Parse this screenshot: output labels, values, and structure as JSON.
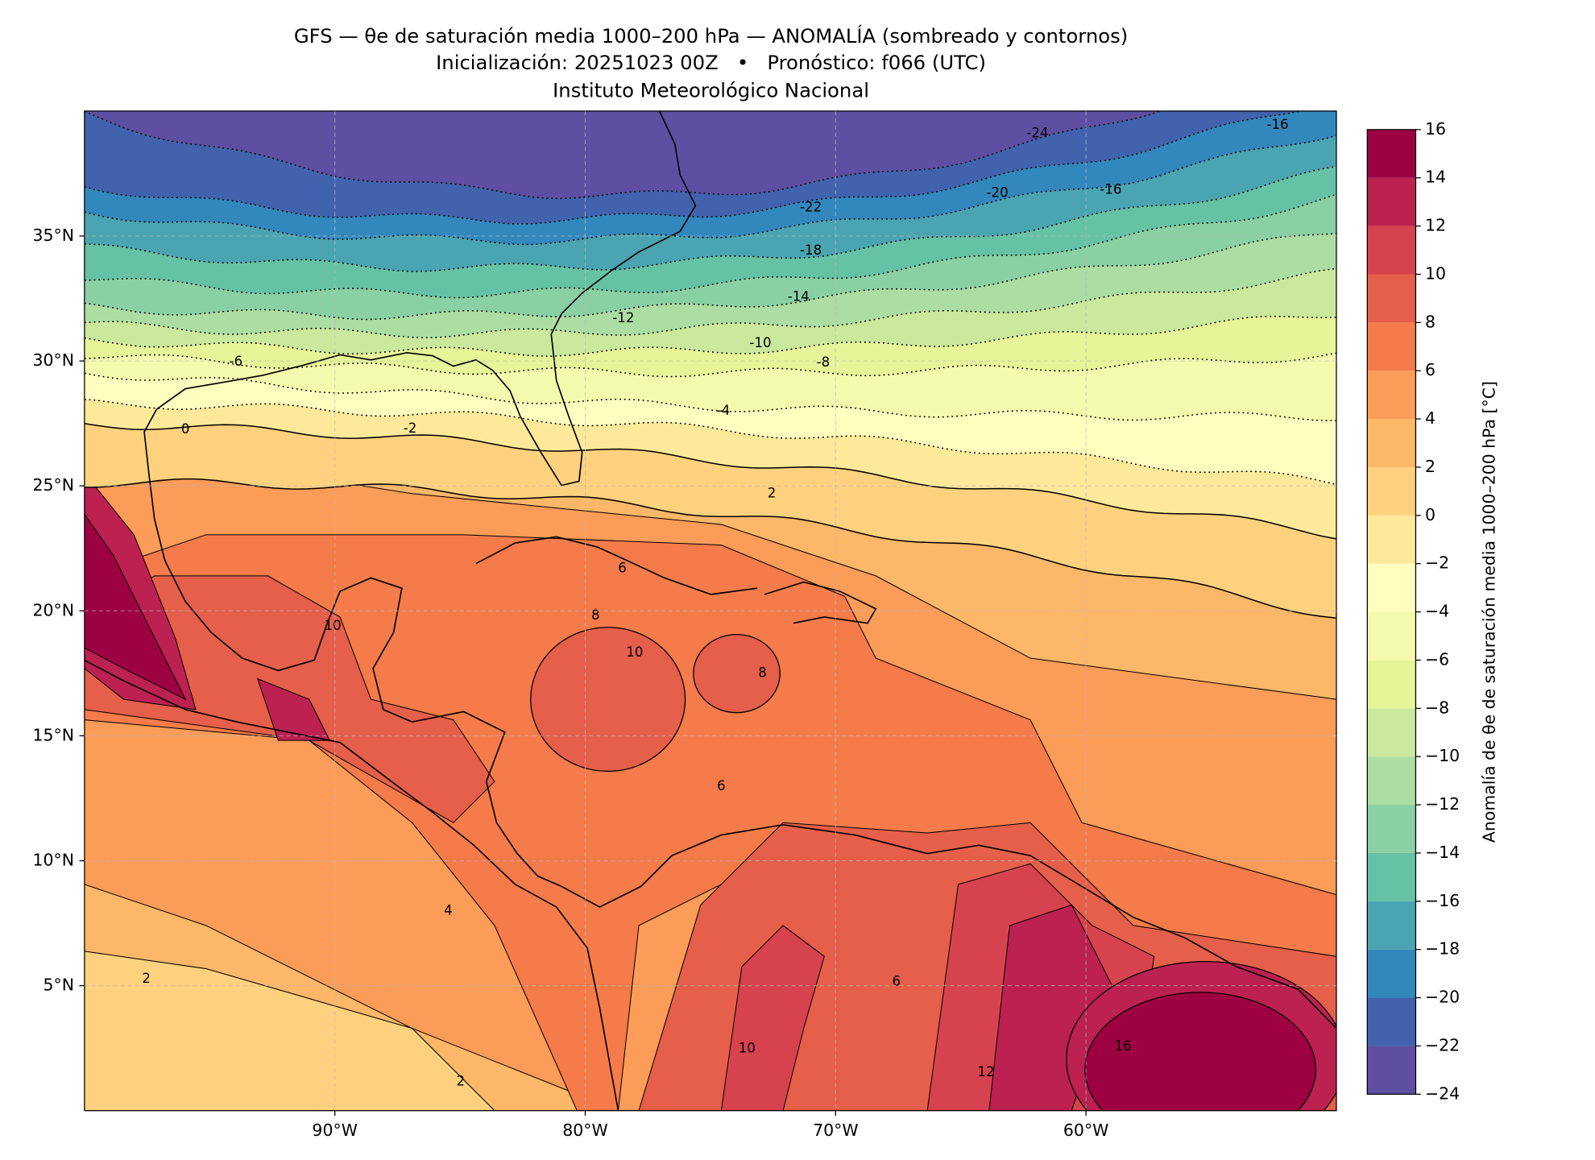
{
  "chart_data": {
    "type": "map",
    "title": "GFS — θe de saturación media 1000–200 hPa — ANOMALÍA (sombreado y contornos)",
    "subtitle": "Inicialización: 20251023 00Z   •   Pronóstico: f066 (UTC)",
    "credit": "Instituto Meteorológico Nacional",
    "xlim": [
      -100,
      -50
    ],
    "ylim": [
      0,
      40
    ],
    "xticks": [
      {
        "value": -90,
        "label": "90°W"
      },
      {
        "value": -80,
        "label": "80°W"
      },
      {
        "value": -70,
        "label": "70°W"
      },
      {
        "value": -60,
        "label": "60°W"
      }
    ],
    "yticks": [
      {
        "value": 5,
        "label": "5°N"
      },
      {
        "value": 10,
        "label": "10°N"
      },
      {
        "value": 15,
        "label": "15°N"
      },
      {
        "value": 20,
        "label": "20°N"
      },
      {
        "value": 25,
        "label": "25°N"
      },
      {
        "value": 30,
        "label": "30°N"
      },
      {
        "value": 35,
        "label": "35°N"
      }
    ],
    "grid": true,
    "colorbar": {
      "label": "Anomalía de θe de saturación media 1000–200 hPa [°C]",
      "levels": [
        {
          "value": -24,
          "label": "−24"
        },
        {
          "value": -22,
          "label": "−22"
        },
        {
          "value": -20,
          "label": "−20"
        },
        {
          "value": -18,
          "label": "−18"
        },
        {
          "value": -16,
          "label": "−16"
        },
        {
          "value": -14,
          "label": "−14"
        },
        {
          "value": -12,
          "label": "−12"
        },
        {
          "value": -10,
          "label": "−10"
        },
        {
          "value": -8,
          "label": "−8"
        },
        {
          "value": -6,
          "label": "−6"
        },
        {
          "value": -4,
          "label": "−4"
        },
        {
          "value": -2,
          "label": "−2"
        },
        0,
        2,
        4,
        6,
        8,
        10,
        12,
        14,
        16
      ],
      "colors": [
        "#5e4fa2",
        "#4163ad",
        "#3288bd",
        "#4ba4b1",
        "#66c2a5",
        "#8ad0a4",
        "#acdea3",
        "#cbe99d",
        "#e6f598",
        "#f4faad",
        "#fffebe",
        "#fee99a",
        "#fed17f",
        "#fdb768",
        "#fb9c58",
        "#f57b4a",
        "#e55f4a",
        "#d6434e",
        "#bc2151",
        "#9e0142"
      ]
    },
    "contour_labels": [
      -24,
      -22,
      -20,
      -18,
      -16,
      -16,
      -14,
      -12,
      -10,
      -8,
      -6,
      -4,
      -2,
      0,
      2,
      6,
      8,
      10,
      10,
      6,
      4,
      2,
      2,
      16,
      12,
      6,
      10,
      8
    ]
  }
}
